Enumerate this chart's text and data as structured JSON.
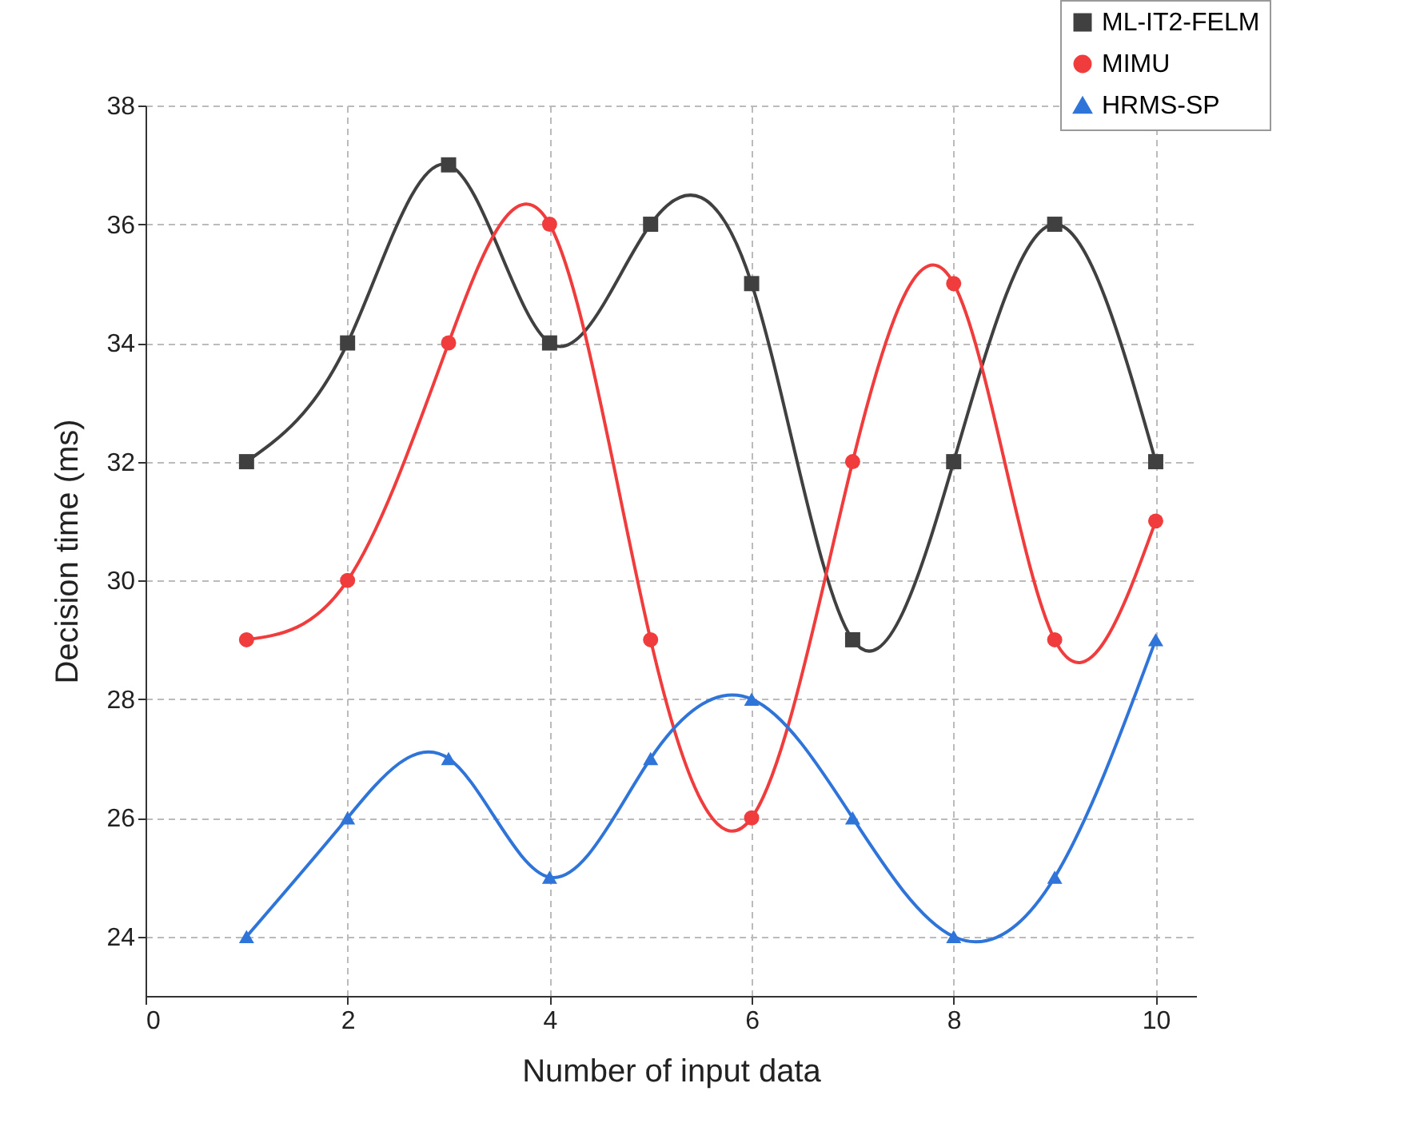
{
  "chart_data": {
    "type": "line",
    "xlabel": "Number of input data",
    "ylabel": "Decision time (ms)",
    "x": [
      1,
      2,
      3,
      4,
      5,
      6,
      7,
      8,
      9,
      10
    ],
    "xlim": [
      0,
      10.4
    ],
    "xticks": [
      0,
      2,
      4,
      6,
      8,
      10
    ],
    "ylim": [
      23,
      38
    ],
    "yticks": [
      24,
      26,
      28,
      30,
      32,
      34,
      36,
      38
    ],
    "grid": true,
    "legend": "top right",
    "line_style": "solid",
    "series": [
      {
        "name": "ML-IT2-FELM",
        "color": "#404040",
        "marker": "square",
        "values": [
          32,
          34,
          37,
          34,
          36,
          35,
          29,
          32,
          36,
          32
        ]
      },
      {
        "name": "MIMU",
        "color": "#f03c3c",
        "marker": "circle",
        "values": [
          29,
          30,
          34,
          36,
          29,
          26,
          32,
          35,
          29,
          31
        ]
      },
      {
        "name": "HRMS-SP",
        "color": "#2f74d8",
        "marker": "triangle",
        "values": [
          24,
          26,
          27,
          25,
          27,
          28,
          26,
          24,
          25,
          29
        ]
      }
    ]
  }
}
